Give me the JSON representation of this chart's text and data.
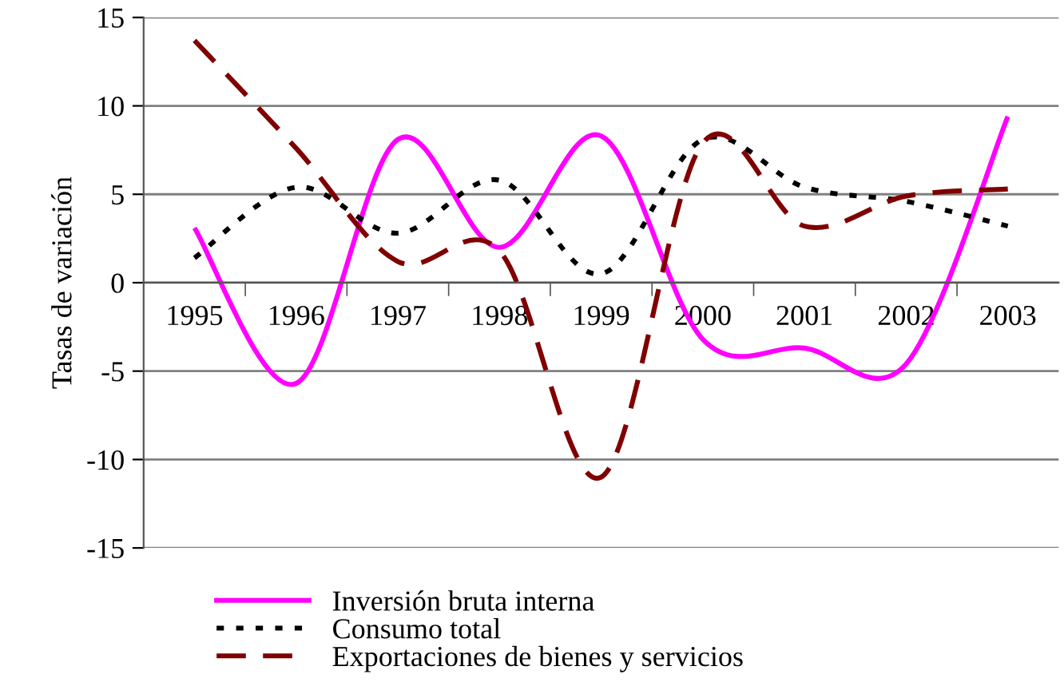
{
  "chart_data": {
    "type": "line",
    "ylabel": "Tasas de variación",
    "categories": [
      "1995",
      "1996",
      "1997",
      "1998",
      "1999",
      "2000",
      "2001",
      "2002",
      "2003"
    ],
    "series": [
      {
        "name": "Inversión bruta interna",
        "color": "#ff00ff",
        "line_style": "solid",
        "values": [
          3.1,
          -5.7,
          8.1,
          2.0,
          8.3,
          -3.2,
          -3.7,
          -4.6,
          9.4
        ]
      },
      {
        "name": "Consumo total",
        "color": "#000000",
        "line_style": "dotted",
        "values": [
          1.4,
          5.4,
          2.8,
          5.8,
          0.5,
          8.1,
          5.4,
          4.6,
          3.2
        ]
      },
      {
        "name": "Exportaciones de bienes y servicios",
        "color": "#800000",
        "line_style": "dashed",
        "values": [
          13.7,
          7.6,
          1.2,
          1.8,
          -11.0,
          7.9,
          3.2,
          4.9,
          5.3
        ]
      }
    ],
    "ylim": [
      -15,
      15
    ],
    "yticks": [
      -15,
      -10,
      -5,
      0,
      5,
      10,
      15
    ],
    "grid": "y",
    "legend": "bottom",
    "marker": "none"
  }
}
